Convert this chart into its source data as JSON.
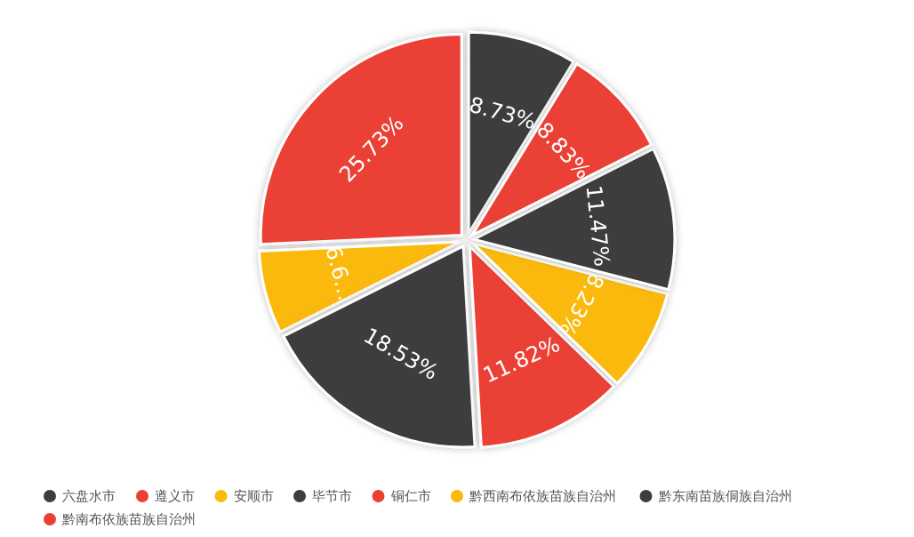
{
  "chart_data": {
    "type": "pie",
    "categories": [
      "六盘水市",
      "遵义市",
      "安顺市",
      "毕节市",
      "铜仁市",
      "黔西南布依族苗族自治州",
      "黔东南苗族侗族自治州",
      "黔南布依族苗族自治州"
    ],
    "values": [
      8.73,
      25.73,
      6.66,
      18.53,
      11.82,
      8.23,
      11.47,
      8.83
    ],
    "value_labels": [
      "8.73%",
      "25.73%",
      "6.6…",
      "18.53%",
      "11.82%",
      "8.23%",
      "11.47%",
      "8.83%"
    ],
    "colors": [
      "#3d3d3d",
      "#eb4034",
      "#fbb909",
      "#3d3d3d",
      "#eb4034",
      "#fbb909",
      "#3d3d3d",
      "#eb4034"
    ],
    "legend": "bottom"
  }
}
